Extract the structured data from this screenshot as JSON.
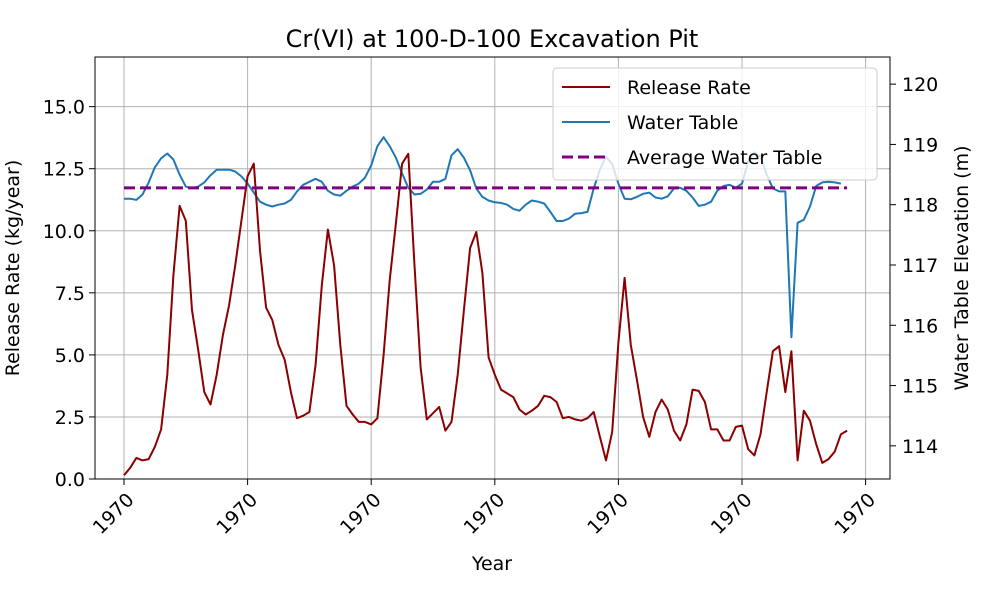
{
  "chart_data": {
    "type": "line",
    "title": "Cr(VI) at 100-D-100 Excavation Pit",
    "xlabel": "Year",
    "ylabel_left": "Release Rate (kg/year)",
    "ylabel_right": "Water Table Elevation (m)",
    "x_tick_labels": [
      "1970",
      "1970",
      "1970",
      "1970",
      "1970",
      "1970",
      "1970"
    ],
    "x_ticks": [
      0,
      20,
      40,
      60,
      80,
      100,
      120
    ],
    "xlim": [
      -5,
      125
    ],
    "y_left_ticks": [
      "0.0",
      "2.5",
      "5.0",
      "7.5",
      "10.0",
      "12.5",
      "15.0"
    ],
    "y_left_tick_values": [
      0,
      2.5,
      5,
      7.5,
      10,
      12.5,
      15
    ],
    "ylim_left": [
      0,
      17
    ],
    "y_right_ticks": [
      "114",
      "115",
      "116",
      "117",
      "118",
      "119",
      "120"
    ],
    "y_right_tick_values": [
      114,
      115,
      116,
      117,
      118,
      119,
      120
    ],
    "ylim_right": [
      113.45,
      120.45
    ],
    "grid": true,
    "legend_position": "top-right",
    "colors": {
      "release_rate": "#8b0000",
      "water_table": "#1f77b4",
      "average_water_table": "#800080"
    },
    "series": [
      {
        "name": "Release Rate",
        "axis": "left",
        "style": "solid",
        "values": [
          0.15,
          0.45,
          0.85,
          0.75,
          0.8,
          1.3,
          2.0,
          4.2,
          8.2,
          11.0,
          10.4,
          6.8,
          5.2,
          3.5,
          3.0,
          4.2,
          5.8,
          7.0,
          8.6,
          10.4,
          12.2,
          12.7,
          9.2,
          6.9,
          6.4,
          5.4,
          4.8,
          3.5,
          2.45,
          2.55,
          2.7,
          4.6,
          7.8,
          10.05,
          8.6,
          5.4,
          2.95,
          2.6,
          2.3,
          2.3,
          2.2,
          2.45,
          5.0,
          8.0,
          10.3,
          12.7,
          13.1,
          8.6,
          4.5,
          2.4,
          2.65,
          2.9,
          1.95,
          2.3,
          4.2,
          6.8,
          9.3,
          9.95,
          8.3,
          4.9,
          4.2,
          3.6,
          3.45,
          3.3,
          2.8,
          2.6,
          2.75,
          2.95,
          3.35,
          3.3,
          3.1,
          2.45,
          2.5,
          2.4,
          2.35,
          2.45,
          2.7,
          1.7,
          0.75,
          1.9,
          5.5,
          8.1,
          5.4,
          4.0,
          2.5,
          1.7,
          2.7,
          3.2,
          2.8,
          1.95,
          1.55,
          2.2,
          3.6,
          3.55,
          3.1,
          2.0,
          2.0,
          1.55,
          1.55,
          2.1,
          2.15,
          1.2,
          0.95,
          1.8,
          3.5,
          5.15,
          5.35,
          3.5,
          5.15,
          0.75,
          2.75,
          2.35,
          1.4,
          0.65,
          0.8,
          1.1,
          1.8,
          1.95
        ]
      },
      {
        "name": "Water Table",
        "axis": "right",
        "style": "solid",
        "values": [
          118.1,
          118.1,
          118.08,
          118.17,
          118.37,
          118.62,
          118.77,
          118.85,
          118.75,
          118.5,
          118.3,
          118.27,
          118.3,
          118.37,
          118.49,
          118.58,
          118.58,
          118.58,
          118.55,
          118.47,
          118.35,
          118.2,
          118.05,
          118.0,
          117.97,
          118.0,
          118.02,
          118.08,
          118.22,
          118.33,
          118.38,
          118.43,
          118.38,
          118.23,
          118.17,
          118.15,
          118.23,
          118.3,
          118.35,
          118.45,
          118.65,
          118.97,
          119.12,
          118.97,
          118.78,
          118.52,
          118.28,
          118.17,
          118.18,
          118.25,
          118.38,
          118.38,
          118.43,
          118.82,
          118.92,
          118.78,
          118.57,
          118.27,
          118.13,
          118.07,
          118.04,
          118.03,
          118.0,
          117.93,
          117.9,
          118.0,
          118.07,
          118.05,
          118.02,
          117.88,
          117.73,
          117.73,
          117.77,
          117.85,
          117.86,
          117.88,
          118.27,
          118.58,
          118.8,
          118.67,
          118.35,
          118.1,
          118.09,
          118.13,
          118.18,
          118.2,
          118.12,
          118.1,
          118.14,
          118.27,
          118.28,
          118.23,
          118.12,
          117.98,
          118.0,
          118.05,
          118.23,
          118.31,
          118.33,
          118.28,
          118.35,
          118.72,
          118.87,
          118.8,
          118.5,
          118.27,
          118.22,
          118.22,
          115.8,
          117.7,
          117.75,
          117.97,
          118.31,
          118.37,
          118.38,
          118.37,
          118.35
        ]
      },
      {
        "name": "Average Water Table",
        "axis": "right",
        "style": "dashed",
        "values": [
          118.28
        ]
      }
    ]
  }
}
